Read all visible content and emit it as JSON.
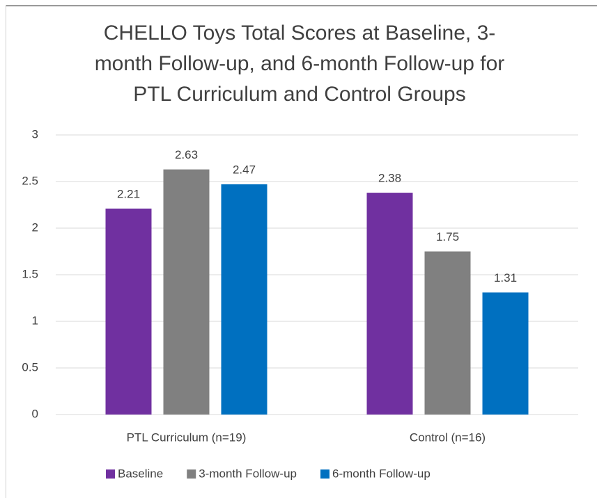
{
  "chart_data": {
    "type": "bar",
    "title": "CHELLO Toys Total Scores at Baseline, 3-month Follow-up, and 6-month Follow-up for PTL Curriculum and Control Groups",
    "categories": [
      "PTL Curriculum (n=19)",
      "Control (n=16)"
    ],
    "series": [
      {
        "name": "Baseline",
        "color": "#7030a0",
        "values": [
          2.21,
          2.38
        ]
      },
      {
        "name": "3-month Follow-up",
        "color": "#808080",
        "values": [
          2.63,
          1.75
        ]
      },
      {
        "name": "6-month Follow-up",
        "color": "#0070c0",
        "values": [
          2.47,
          1.31
        ]
      }
    ],
    "ylim": [
      0,
      3
    ],
    "yticks": [
      0,
      0.5,
      1,
      1.5,
      2,
      2.5,
      3
    ],
    "grid": true,
    "legend": "bottom"
  }
}
